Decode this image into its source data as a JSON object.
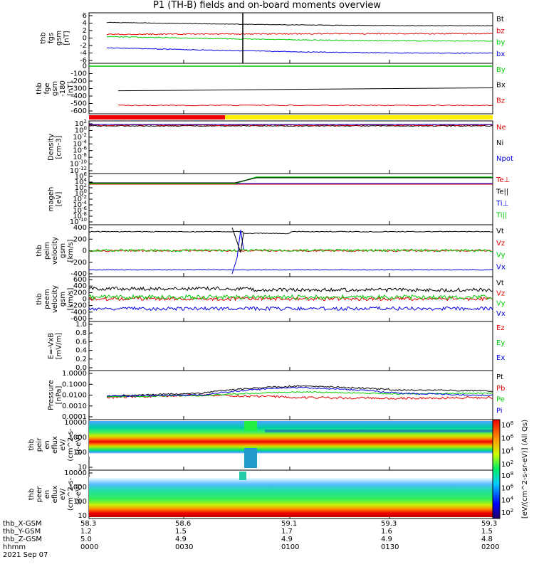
{
  "title": "P1 (TH-B) fields and on-board moments overview",
  "colors": {
    "black": "#000000",
    "red": "#e00000",
    "green": "#00cc00",
    "blue": "#0000e0",
    "yellow": "#ffee00"
  },
  "panels": [
    {
      "ylabel": [
        "thb",
        "fgs",
        "gsm",
        "[nT]"
      ],
      "ticks": [
        "6",
        "4",
        "2",
        "0",
        "-2",
        "-4",
        "-6"
      ],
      "legend": [
        [
          "Bt",
          "black"
        ],
        [
          "bz",
          "red"
        ],
        [
          "by",
          "green"
        ],
        [
          "bx",
          "blue"
        ]
      ]
    },
    {
      "ylabel": [
        "thb",
        "fge",
        "gsm",
        "-180",
        "[nT]"
      ],
      "ticks": [
        "0",
        "-100",
        "-200",
        "-300",
        "-400",
        "-500",
        "-600"
      ],
      "legend": [
        [
          "By",
          "green"
        ],
        [
          "Bx",
          "black"
        ],
        [
          "Bz",
          "red"
        ]
      ]
    },
    {
      "ylabel": [
        "Density",
        "[cm-3]"
      ],
      "ticks": [
        "10^2",
        "10^0",
        "10^-2",
        "10^-4",
        "10^-6",
        "10^-8",
        "10^-10",
        "10^-12"
      ],
      "legend": [
        [
          "Ne",
          "red"
        ],
        [
          "Ni",
          "black"
        ],
        [
          "Npot",
          "blue"
        ]
      ]
    },
    {
      "ylabel": [
        "mageh",
        "[eV]"
      ],
      "ticks": [
        "10^6",
        "10^4",
        "10^2",
        "10^0",
        "10^-2",
        "10^-4",
        "10^-6",
        "10^-8",
        "10^-10"
      ],
      "legend": [
        [
          "Te⊥",
          "red"
        ],
        [
          "Te||",
          "black"
        ],
        [
          "Ti⊥",
          "blue"
        ],
        [
          "Ti||",
          "green"
        ]
      ]
    },
    {
      "ylabel": [
        "thb",
        "peim",
        "velocity",
        "gsm",
        "[km/s]"
      ],
      "ticks": [
        "400",
        "200",
        "0",
        "-200",
        "-400"
      ],
      "legend": [
        [
          "Vt",
          "black"
        ],
        [
          "Vz",
          "red"
        ],
        [
          "Vy",
          "green"
        ],
        [
          "Vx",
          "blue"
        ]
      ]
    },
    {
      "ylabel": [
        "thb",
        "peem",
        "velocity",
        "gsm",
        "[km/s]"
      ],
      "ticks": [
        "600",
        "400",
        "200",
        "0",
        "-200",
        "-400",
        "-600"
      ],
      "legend": [
        [
          "Vt",
          "black"
        ],
        [
          "Vz",
          "red"
        ],
        [
          "Vy",
          "green"
        ],
        [
          "Vx",
          "blue"
        ]
      ]
    },
    {
      "ylabel": [
        "E=-VxB",
        "[mV/m]"
      ],
      "ticks": [
        "1.0",
        "0.8",
        "0.6",
        "0.4",
        "0.2",
        "0.0"
      ],
      "legend": [
        [
          "Ez",
          "red"
        ],
        [
          "Ey",
          "green"
        ],
        [
          "Ex",
          "blue"
        ]
      ]
    },
    {
      "ylabel": [
        "Pressure",
        "[nPa]"
      ],
      "ticks": [
        "1.0000",
        "0.1000",
        "0.0100",
        "0.0010",
        "0.0001"
      ],
      "legend": [
        [
          "Pt",
          "black"
        ],
        [
          "Pb",
          "red"
        ],
        [
          "Pe",
          "green"
        ],
        [
          "Pi",
          "blue"
        ]
      ]
    },
    {
      "ylabel": [
        "thb",
        "peir",
        "en",
        "eflux",
        "eV/",
        "(cm^2-s-",
        "sr-eV)"
      ],
      "ticks": [
        "10000",
        "1000",
        "100",
        "10"
      ],
      "legend": []
    },
    {
      "ylabel": [
        "thb",
        "peer",
        "en",
        "eflux",
        "eV/",
        "(cm^2-s-",
        "sr-eV)"
      ],
      "ticks": [
        "10000",
        "1000",
        "100",
        "10"
      ],
      "legend": []
    }
  ],
  "colorbar": {
    "ticks": [
      "10^8",
      "10^6",
      "10^4",
      "10^2"
    ],
    "label": "[eV/(cm^2-s-sr-eV)] (All Qs)"
  },
  "footer": {
    "rows": [
      {
        "label": "thb_X-GSM",
        "values": [
          "58.3",
          "58.6",
          "59.1",
          "59.3",
          "59.3"
        ]
      },
      {
        "label": "thb_Y-GSM",
        "values": [
          "1.2",
          "1.5",
          "1.7",
          "1.6",
          "1.5"
        ]
      },
      {
        "label": "thb_Z-GSM",
        "values": [
          "5.0",
          "4.9",
          "4.9",
          "4.9",
          "4.8"
        ]
      },
      {
        "label": "hhmm",
        "values": [
          "0000",
          "0030",
          "0100",
          "0130",
          "0200"
        ]
      }
    ],
    "date": "2021 Sep 07"
  },
  "chart_data": {
    "type": "line",
    "title": "P1 (TH-B) fields and on-board moments overview",
    "x": [
      "0000",
      "0030",
      "0100",
      "0130",
      "0200"
    ],
    "xlabel": "hhmm",
    "series": [
      {
        "name": "Bt",
        "panel": 0,
        "values": [
          4.5,
          3.4,
          3.4,
          4.5,
          4.6
        ]
      },
      {
        "name": "bz",
        "panel": 0,
        "values": [
          1.0,
          2.0,
          0.5,
          -0.2,
          1.0
        ]
      },
      {
        "name": "by",
        "panel": 0,
        "values": [
          0.5,
          0.5,
          0.5,
          -0.5,
          -1.0
        ]
      },
      {
        "name": "bx",
        "panel": 0,
        "values": [
          -2.5,
          -3.5,
          -3.6,
          -4.2,
          -4.3
        ]
      },
      {
        "name": "By",
        "panel": 1,
        "values": [
          0,
          0,
          0,
          0,
          0
        ]
      },
      {
        "name": "Bx",
        "panel": 1,
        "values": [
          -330,
          -320,
          -310,
          -300,
          -290
        ]
      },
      {
        "name": "Bz",
        "panel": 1,
        "values": [
          -520,
          -525,
          -525,
          -525,
          -525
        ]
      },
      {
        "name": "Vt",
        "panel": 4,
        "values": [
          330,
          330,
          310,
          320,
          330
        ]
      },
      {
        "name": "Vz",
        "panel": 4,
        "values": [
          0,
          0,
          0,
          0,
          0
        ]
      },
      {
        "name": "Vy",
        "panel": 4,
        "values": [
          0,
          10,
          0,
          0,
          0
        ]
      },
      {
        "name": "Vx",
        "panel": 4,
        "values": [
          -330,
          -330,
          -330,
          -330,
          -330
        ]
      },
      {
        "name": "Pt",
        "panel": 7,
        "values": [
          0.008,
          0.015,
          0.07,
          0.03,
          0.025
        ]
      },
      {
        "name": "Pb",
        "panel": 7,
        "values": [
          0.006,
          0.01,
          0.006,
          0.005,
          0.006
        ]
      },
      {
        "name": "Pe",
        "panel": 7,
        "values": [
          0.007,
          0.009,
          0.02,
          0.013,
          0.015
        ]
      },
      {
        "name": "Pi",
        "panel": 7,
        "values": [
          0.008,
          0.01,
          0.05,
          0.015,
          0.009
        ]
      }
    ]
  }
}
